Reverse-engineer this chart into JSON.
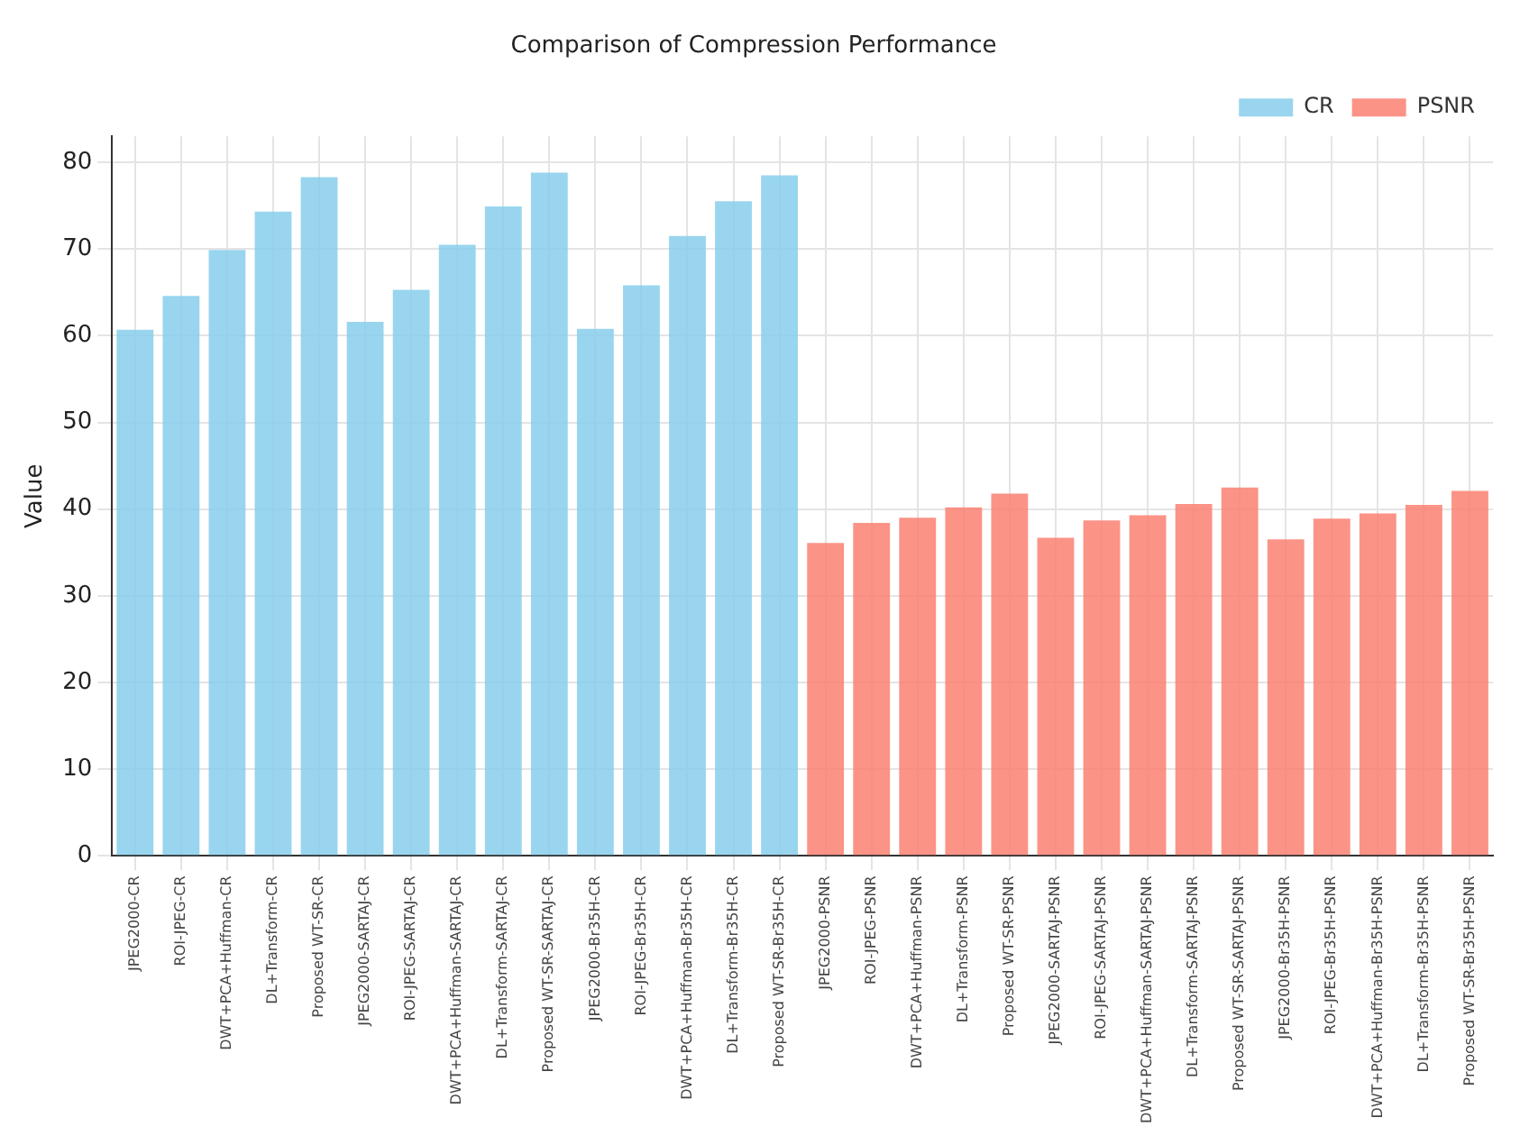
{
  "chart_data": {
    "type": "bar",
    "title": "Comparison of Compression Performance",
    "ylabel": "Value",
    "categories": [
      "JPEG2000-CR",
      "ROI-JPEG-CR",
      "DWT+PCA+Huffman-CR",
      "DL+Transform-CR",
      "Proposed WT-SR-CR",
      "JPEG2000-SARTAJ-CR",
      "ROI-JPEG-SARTAJ-CR",
      "DWT+PCA+Huffman-SARTAJ-CR",
      "DL+Transform-SARTAJ-CR",
      "Proposed WT-SR-SARTAJ-CR",
      "JPEG2000-Br35H-CR",
      "ROI-JPEG-Br35H-CR",
      "DWT+PCA+Huffman-Br35H-CR",
      "DL+Transform-Br35H-CR",
      "Proposed WT-SR-Br35H-CR",
      "JPEG2000-PSNR",
      "ROI-JPEG-PSNR",
      "DWT+PCA+Huffman-PSNR",
      "DL+Transform-PSNR",
      "Proposed WT-SR-PSNR",
      "JPEG2000-SARTAJ-PSNR",
      "ROI-JPEG-SARTAJ-PSNR",
      "DWT+PCA+Huffman-SARTAJ-PSNR",
      "DL+Transform-SARTAJ-PSNR",
      "Proposed WT-SR-SARTAJ-PSNR",
      "JPEG2000-Br35H-PSNR",
      "ROI-JPEG-Br35H-PSNR",
      "DWT+PCA+Huffman-Br35H-PSNR",
      "DL+Transform-Br35H-PSNR",
      "Proposed WT-SR-Br35H-PSNR"
    ],
    "series": [
      {
        "name": "CR",
        "color": "#87ceeb",
        "values": [
          60.7,
          64.6,
          69.9,
          74.3,
          78.3,
          61.6,
          65.3,
          70.5,
          74.9,
          78.8,
          60.8,
          65.8,
          71.5,
          75.5,
          78.5,
          null,
          null,
          null,
          null,
          null,
          null,
          null,
          null,
          null,
          null,
          null,
          null,
          null,
          null,
          null
        ]
      },
      {
        "name": "PSNR",
        "color": "#fa8072",
        "values": [
          null,
          null,
          null,
          null,
          null,
          null,
          null,
          null,
          null,
          null,
          null,
          null,
          null,
          null,
          null,
          36.1,
          38.4,
          39.0,
          40.2,
          41.8,
          36.7,
          38.7,
          39.3,
          40.6,
          42.5,
          36.5,
          38.9,
          39.5,
          40.5,
          42.1
        ]
      }
    ],
    "ylim": [
      0,
      83
    ],
    "yticks": [
      0,
      10,
      20,
      30,
      40,
      50,
      60,
      70,
      80
    ],
    "grid": true,
    "legend": "top right"
  }
}
